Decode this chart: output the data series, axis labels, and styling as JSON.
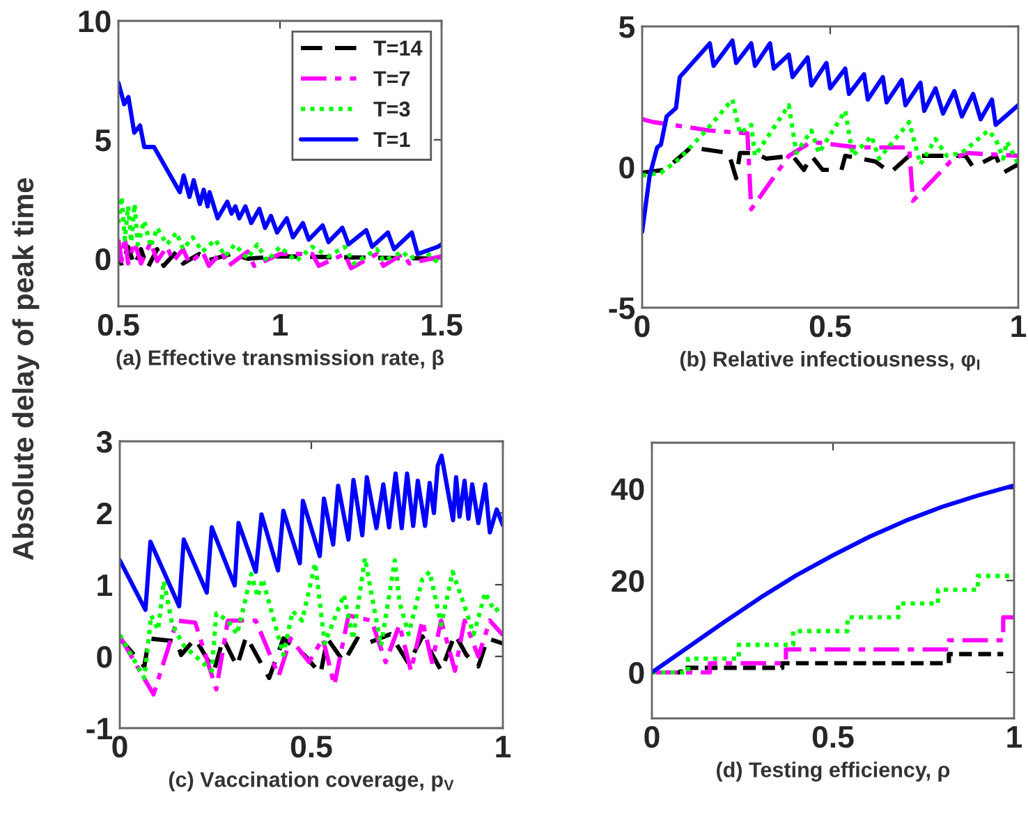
{
  "chart_data": [
    {
      "type": "line",
      "xlabel": "(a) Effective transmission rate, β",
      "ylabel": "Absolute delay of peak time",
      "xlim": [
        0.5,
        1.5
      ],
      "ylim": [
        -2,
        10
      ],
      "xticks": [
        0.5,
        1,
        1.5
      ],
      "yticks": [
        0,
        5,
        10
      ],
      "legend": "top right",
      "grid": false,
      "series": [
        {
          "name": "T=14",
          "color": "#000000",
          "line_style": "dashed",
          "x": [
            0.5,
            0.51,
            0.53,
            0.55,
            0.57,
            0.59,
            0.62,
            0.64,
            0.68,
            0.7,
            0.75,
            0.77,
            0.85,
            0.9,
            1.0,
            1.5
          ],
          "values": [
            0.6,
            -0.3,
            0.5,
            -0.3,
            0.4,
            -0.4,
            0.4,
            -0.3,
            0.3,
            -0.2,
            0.2,
            -0.1,
            0.2,
            0.0,
            0.1,
            0.0
          ]
        },
        {
          "name": "T=7",
          "color": "#ff00ff",
          "line_style": "dashdot",
          "x": [
            0.5,
            0.51,
            0.52,
            0.53,
            0.55,
            0.57,
            0.6,
            0.62,
            0.65,
            0.67,
            0.7,
            0.72,
            0.76,
            0.78,
            0.82,
            0.84,
            0.9,
            0.92,
            1.0,
            1.1,
            1.12,
            1.2,
            1.22,
            1.3,
            1.32,
            1.38,
            1.4,
            1.5
          ],
          "values": [
            0.8,
            -0.1,
            0.9,
            -0.2,
            0.7,
            -0.2,
            0.7,
            -0.1,
            0.5,
            -0.1,
            0.4,
            -0.2,
            0.3,
            -0.3,
            0.3,
            -0.3,
            0.3,
            -0.3,
            0.2,
            0.2,
            -0.3,
            0.2,
            -0.4,
            0.2,
            -0.3,
            0.2,
            -0.2,
            0.1
          ]
        },
        {
          "name": "T=3",
          "color": "#00ff00",
          "line_style": "dotted",
          "x": [
            0.5,
            0.51,
            0.52,
            0.53,
            0.54,
            0.55,
            0.56,
            0.58,
            0.6,
            0.62,
            0.65,
            0.68,
            0.7,
            0.73,
            0.76,
            0.8,
            0.83,
            0.86,
            0.9,
            0.93,
            0.96,
            1.0,
            1.05,
            1.1,
            1.15,
            1.2,
            1.23,
            1.3,
            1.32,
            1.38,
            1.4,
            1.45,
            1.5
          ],
          "values": [
            1.5,
            2.6,
            0.8,
            2.2,
            0.7,
            2.3,
            0.6,
            1.6,
            0.5,
            1.3,
            0.6,
            1.1,
            0.4,
            0.9,
            0.3,
            0.8,
            0.1,
            0.6,
            0.0,
            0.6,
            -0.1,
            0.5,
            -0.1,
            0.5,
            0.1,
            0.5,
            -0.2,
            0.4,
            -0.1,
            0.3,
            0.0,
            0.3,
            -0.3
          ]
        },
        {
          "name": "T=1",
          "color": "#0000ff",
          "line_style": "solid",
          "x": [
            0.5,
            0.518,
            0.531,
            0.549,
            0.567,
            0.58,
            0.61,
            0.69,
            0.702,
            0.72,
            0.733,
            0.752,
            0.764,
            0.776,
            0.782,
            0.807,
            0.837,
            0.85,
            0.862,
            0.874,
            0.893,
            0.911,
            0.936,
            0.954,
            0.972,
            0.991,
            1.021,
            1.04,
            1.071,
            1.089,
            1.132,
            1.15,
            1.193,
            1.212,
            1.267,
            1.285,
            1.334,
            1.353,
            1.408,
            1.426,
            1.488,
            1.5
          ],
          "values": [
            7.4,
            6.5,
            6.8,
            5.3,
            5.6,
            4.7,
            4.7,
            2.8,
            3.5,
            2.6,
            3.3,
            2.3,
            2.9,
            2.2,
            2.8,
            1.7,
            2.4,
            1.9,
            2.2,
            1.7,
            2.2,
            1.5,
            2.1,
            1.3,
            1.8,
            1.1,
            1.7,
            0.9,
            1.5,
            0.8,
            1.4,
            0.7,
            1.3,
            0.6,
            1.2,
            0.5,
            1.1,
            0.4,
            1.1,
            0.2,
            0.5,
            0.6
          ]
        }
      ]
    },
    {
      "type": "line",
      "xlabel": "(b) Relative infectiousness, φ$_{I}$",
      "xlim": [
        0,
        1
      ],
      "ylim": [
        -5,
        5
      ],
      "xticks": [
        0,
        0.5,
        1
      ],
      "yticks": [
        -5,
        0,
        5
      ],
      "grid": false,
      "series": [
        {
          "color": "#000000",
          "line_style": "dashed",
          "x": [
            0,
            0.06,
            0.13,
            0.23,
            0.25,
            0.26,
            0.3,
            0.33,
            0.4,
            0.43,
            0.45,
            0.48,
            0.53,
            0.54,
            0.62,
            0.66,
            0.71,
            0.86,
            0.88,
            0.94,
            0.96,
            1
          ],
          "values": [
            -0.2,
            -0.1,
            0.7,
            0.5,
            -0.4,
            0.5,
            0.5,
            0.3,
            0.4,
            -0.1,
            0.4,
            -0.1,
            -0.1,
            0.4,
            0.2,
            -0.2,
            0.4,
            0.4,
            0.0,
            0.4,
            -0.2,
            0.1
          ]
        },
        {
          "color": "#ff00ff",
          "line_style": "dashdot",
          "x": [
            0,
            0.03,
            0.18,
            0.28,
            0.29,
            0.39,
            0.45,
            0.57,
            0.71,
            0.72,
            0.82,
            0.86,
            1
          ],
          "values": [
            1.7,
            1.6,
            1.3,
            1.2,
            -1.5,
            0.4,
            0.9,
            0.7,
            0.7,
            -1.2,
            0.2,
            0.5,
            0.4
          ]
        },
        {
          "color": "#00ff00",
          "line_style": "dotted",
          "x": [
            0,
            0.05,
            0.1,
            0.17,
            0.24,
            0.26,
            0.29,
            0.3,
            0.39,
            0.41,
            0.45,
            0.47,
            0.54,
            0.56,
            0.61,
            0.63,
            0.71,
            0.74,
            0.78,
            0.81,
            0.85,
            0.92,
            0.94,
            0.96,
            0.97,
            1
          ],
          "values": [
            -0.3,
            -0.2,
            0.3,
            1.3,
            2.4,
            1.2,
            1.5,
            0.4,
            2.2,
            0.5,
            1.3,
            0.5,
            2.0,
            0.4,
            1.1,
            0.3,
            1.6,
            0.1,
            1.0,
            0.4,
            0.5,
            1.3,
            1.0,
            0.3,
            0.9,
            0.1
          ]
        },
        {
          "color": "#0000ff",
          "line_style": "solid",
          "x": [
            0,
            0.02,
            0.04,
            0.05,
            0.065,
            0.09,
            0.1,
            0.18,
            0.19,
            0.24,
            0.25,
            0.29,
            0.3,
            0.34,
            0.35,
            0.39,
            0.4,
            0.44,
            0.45,
            0.49,
            0.5,
            0.54,
            0.55,
            0.59,
            0.6,
            0.64,
            0.65,
            0.69,
            0.7,
            0.74,
            0.75,
            0.78,
            0.8,
            0.83,
            0.85,
            0.88,
            0.9,
            0.93,
            0.94,
            1
          ],
          "values": [
            -2.3,
            -0.3,
            0.7,
            0.8,
            1.8,
            2.1,
            3.2,
            4.4,
            3.6,
            4.5,
            3.7,
            4.4,
            3.6,
            4.4,
            3.5,
            4.0,
            3.2,
            3.9,
            2.9,
            3.7,
            2.8,
            3.5,
            2.6,
            3.3,
            2.4,
            3.2,
            2.3,
            3.1,
            2.2,
            3.0,
            2.0,
            2.8,
            1.9,
            2.7,
            1.8,
            2.6,
            1.7,
            2.4,
            1.5,
            2.2
          ]
        }
      ]
    },
    {
      "type": "line",
      "xlabel": "(c) Vaccination coverage, p$_{V}$",
      "xlim": [
        0,
        1
      ],
      "ylim": [
        -1,
        3
      ],
      "xticks": [
        0,
        0.5,
        1
      ],
      "yticks": [
        -1,
        0,
        1,
        2,
        3
      ],
      "grid": false,
      "series": [
        {
          "color": "#000000",
          "line_style": "dashed",
          "x": [
            0,
            0.064,
            0.076,
            0.149,
            0.16,
            0.197,
            0.246,
            0.27,
            0.306,
            0.33,
            0.39,
            0.427,
            0.482,
            0.524,
            0.542,
            0.585,
            0.62,
            0.645,
            0.706,
            0.754,
            0.79,
            0.839,
            0.875,
            0.905,
            0.936,
            0.96,
            1
          ],
          "values": [
            0.25,
            -0.14,
            0.25,
            0.21,
            0.02,
            0.25,
            -0.2,
            0.25,
            -0.14,
            0.28,
            -0.3,
            0.25,
            0.02,
            -0.24,
            0.25,
            -0.08,
            0.25,
            0.18,
            0.31,
            -0.1,
            0.28,
            -0.2,
            0.31,
            0.02,
            -0.14,
            0.25,
            0.18
          ]
        },
        {
          "color": "#ff00ff",
          "line_style": "dashdot",
          "x": [
            0,
            0.088,
            0.149,
            0.197,
            0.252,
            0.282,
            0.355,
            0.415,
            0.446,
            0.494,
            0.53,
            0.56,
            0.597,
            0.657,
            0.694,
            0.73,
            0.76,
            0.79,
            0.815,
            0.839,
            0.875,
            0.9,
            0.936,
            0.966,
            1
          ],
          "values": [
            0.28,
            -0.53,
            0.5,
            0.47,
            -0.46,
            0.5,
            0.5,
            -0.27,
            0.25,
            -0.08,
            0.25,
            -0.4,
            0.57,
            0.5,
            -0.08,
            0.44,
            -0.2,
            0.5,
            -0.08,
            0.5,
            -0.2,
            0.5,
            0.0,
            0.5,
            0.3
          ]
        },
        {
          "color": "#00ff00",
          "line_style": "dotted",
          "x": [
            0,
            0.064,
            0.082,
            0.1,
            0.115,
            0.137,
            0.167,
            0.24,
            0.252,
            0.282,
            0.306,
            0.324,
            0.343,
            0.36,
            0.373,
            0.427,
            0.451,
            0.476,
            0.51,
            0.535,
            0.585,
            0.609,
            0.64,
            0.682,
            0.718,
            0.73,
            0.754,
            0.79,
            0.809,
            0.839,
            0.869,
            0.9,
            0.924,
            0.954,
            0.978,
            1
          ],
          "values": [
            0.3,
            -0.3,
            0.57,
            0.37,
            1.05,
            0.44,
            0.15,
            -0.2,
            0.6,
            0.5,
            0.31,
            0.7,
            1.15,
            0.83,
            1.08,
            0.02,
            0.63,
            0.5,
            1.3,
            0.18,
            0.86,
            0.24,
            1.37,
            0.15,
            1.34,
            0.76,
            0.31,
            1.08,
            1.18,
            0.44,
            1.18,
            0.7,
            0.31,
            0.89,
            0.63,
            0.7
          ]
        },
        {
          "color": "#0000ff",
          "line_style": "solid",
          "x": [
            0,
            0.067,
            0.08,
            0.155,
            0.167,
            0.227,
            0.24,
            0.3,
            0.31,
            0.355,
            0.37,
            0.413,
            0.427,
            0.47,
            0.478,
            0.522,
            0.533,
            0.557,
            0.57,
            0.597,
            0.61,
            0.633,
            0.645,
            0.67,
            0.688,
            0.703,
            0.72,
            0.736,
            0.75,
            0.766,
            0.778,
            0.797,
            0.809,
            0.82,
            0.83,
            0.84,
            0.87,
            0.878,
            0.887,
            0.9,
            0.91,
            0.92,
            0.936,
            0.954,
            0.966,
            0.984,
            1
          ],
          "values": [
            1.34,
            0.65,
            1.6,
            0.7,
            1.63,
            0.89,
            1.8,
            0.99,
            1.86,
            1.18,
            1.98,
            1.2,
            2.03,
            1.3,
            2.17,
            1.4,
            2.2,
            1.56,
            2.38,
            1.63,
            2.46,
            1.69,
            2.5,
            1.79,
            2.4,
            1.8,
            2.55,
            1.79,
            2.55,
            1.82,
            2.45,
            1.82,
            2.42,
            2.0,
            2.66,
            2.8,
            1.9,
            2.5,
            1.95,
            2.45,
            1.92,
            2.4,
            1.86,
            2.4,
            1.73,
            2.05,
            1.83
          ]
        }
      ]
    },
    {
      "type": "line",
      "xlabel": "(d) Testing efficiency, ρ",
      "xlim": [
        0,
        1
      ],
      "ylim": [
        -10,
        50
      ],
      "xticks": [
        0,
        0.5,
        1
      ],
      "yticks": [
        0,
        20,
        40
      ],
      "grid": false,
      "series": [
        {
          "type": "step",
          "color": "#000000",
          "line_style": "dashed",
          "x": [
            0,
            0.08,
            0.36,
            0.82,
            0.97
          ],
          "values": [
            0,
            1,
            2,
            4,
            4
          ]
        },
        {
          "type": "step",
          "color": "#ff00ff",
          "line_style": "dashdot",
          "x": [
            0,
            0.16,
            0.37,
            0.82,
            0.97,
            1
          ],
          "values": [
            0,
            2,
            5,
            7,
            12,
            12
          ]
        },
        {
          "type": "step",
          "color": "#00ff00",
          "line_style": "dotted",
          "x": [
            0,
            0.1,
            0.24,
            0.39,
            0.54,
            0.68,
            0.79,
            0.9,
            1
          ],
          "values": [
            0,
            3,
            6,
            9,
            12,
            15,
            18,
            21,
            21
          ]
        },
        {
          "color": "#0000ff",
          "line_style": "solid",
          "x": [
            0,
            0.1,
            0.2,
            0.3,
            0.4,
            0.5,
            0.6,
            0.7,
            0.8,
            0.9,
            1
          ],
          "values": [
            0,
            5.5,
            11,
            16.3,
            21.2,
            25.5,
            29.5,
            33,
            36,
            38.5,
            40.7
          ]
        }
      ]
    }
  ]
}
